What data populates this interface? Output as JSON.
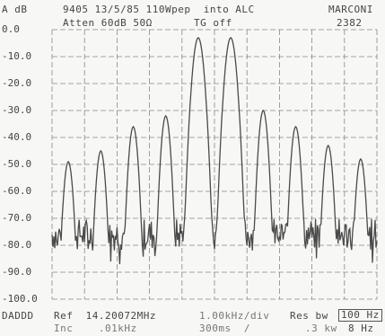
{
  "header": {
    "unit": "A dB",
    "title": "9405 13/5/85 110Wpep  into ALC",
    "brand": "MARCONI",
    "ref_value": "0.0",
    "atten": "Atten 60dB 50Ω",
    "tg": "TG off",
    "model": "2382"
  },
  "footer": {
    "mode": "DADDD",
    "ref": "Ref  14.20072MHz",
    "inc": "Inc    .01kHz",
    "span": "1.00kHz/div",
    "span2": "300ms  /",
    "res_label": "Res bw",
    "res_value": "100 Hz",
    "vid": ".3 kw",
    "vid_value": "8 Hz"
  },
  "chart_data": {
    "type": "line",
    "title": "",
    "xlabel": "",
    "ylabel": "A dB",
    "ylim": [
      -100,
      0
    ],
    "y_ticks": [
      "0.0",
      "-10.0",
      "-20.0",
      "-30.0",
      "-40.0",
      "-50.0",
      "-60.0",
      "-70.0",
      "-80.0",
      "-90.0",
      "-100.0"
    ],
    "grid": true,
    "peaks_x": [
      -4.5,
      -3.5,
      -2.5,
      -1.5,
      -0.5,
      0.5,
      1.5,
      2.5,
      3.5,
      4.5
    ],
    "peaks_db": [
      -49,
      -45,
      -36,
      -32,
      -3,
      -3,
      -30,
      -36,
      -43,
      -48
    ],
    "noise_floor_db": -76,
    "xlim": [
      -5,
      5
    ],
    "colors": {
      "trace": "#4a4a4a",
      "grid": "#888888"
    }
  }
}
